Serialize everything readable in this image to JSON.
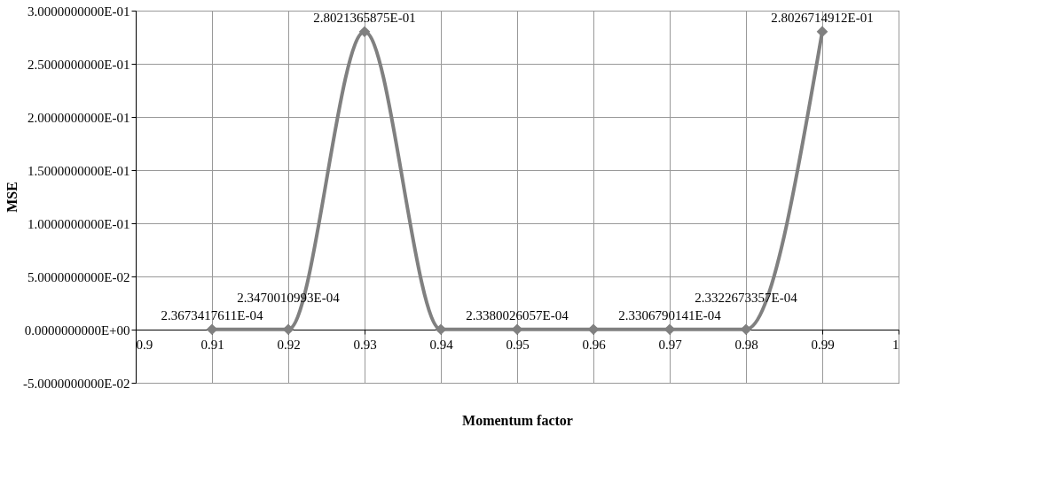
{
  "chart_data": {
    "type": "line",
    "xlabel": "Momentum factor",
    "ylabel": "MSE",
    "x": [
      0.91,
      0.92,
      0.93,
      0.94,
      0.95,
      0.96,
      0.97,
      0.98,
      0.99
    ],
    "series": [
      {
        "color": "#808080",
        "values": [
          0.00023673417611,
          0.00023470010993,
          0.28021365875,
          0.0002,
          0.00023380026057,
          0.0002,
          0.00023306790141,
          0.00023322673357,
          0.28026714912
        ],
        "value_labels": [
          "2.3673417611E-04",
          "2.3470010993E-04",
          "2.8021365875E-01",
          null,
          "2.3380026057E-04",
          null,
          "2.3306790141E-04",
          "2.3322673357E-04",
          "2.8026714912E-01"
        ]
      }
    ],
    "xlim": [
      0.9,
      1.0
    ],
    "xticks": [
      0.9,
      0.91,
      0.92,
      0.93,
      0.94,
      0.95,
      0.96,
      0.97,
      0.98,
      0.99,
      {
        "value": 1.0,
        "label": "1"
      }
    ],
    "ylim": [
      -0.05,
      0.3
    ],
    "yticks": [
      {
        "value": -0.05,
        "label": "-5.0000000000E-02"
      },
      {
        "value": 0,
        "label": "0.0000000000E+00"
      },
      {
        "value": 0.05,
        "label": "5.0000000000E-02"
      },
      {
        "value": 0.1,
        "label": "1.0000000000E-01"
      },
      {
        "value": 0.15,
        "label": "1.5000000000E-01"
      },
      {
        "value": 0.2,
        "label": "2.0000000000E-01"
      },
      {
        "value": 0.25,
        "label": "2.5000000000E-01"
      },
      {
        "value": 0.3,
        "label": "3.0000000000E-01"
      }
    ],
    "grid": true,
    "marker": "diamond",
    "line_style": "solid"
  }
}
